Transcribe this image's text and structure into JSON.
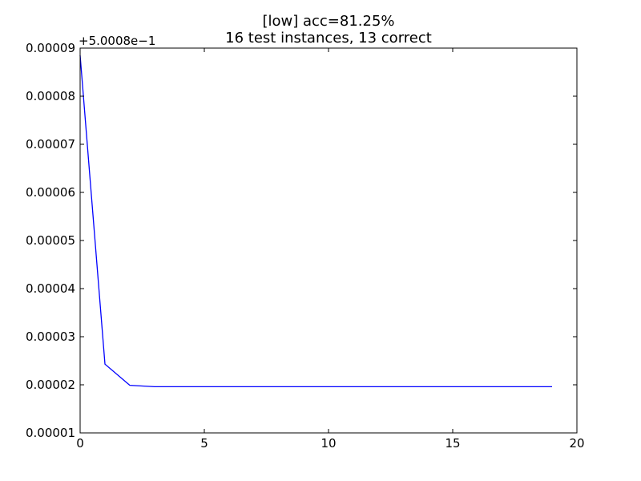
{
  "chart_data": {
    "type": "line",
    "title": [
      "[low] acc=81.25%",
      "16 test instances, 13 correct"
    ],
    "xlabel": "",
    "ylabel": "",
    "xlim": [
      0,
      20
    ],
    "ylim": [
      1e-05,
      9e-05
    ],
    "y_offset_label": "+5.0008e−1",
    "x_ticks": [
      0,
      5,
      10,
      15,
      20
    ],
    "x_tick_labels": [
      "0",
      "5",
      "10",
      "15",
      "20"
    ],
    "y_ticks": [
      1e-05,
      2e-05,
      3e-05,
      4e-05,
      5e-05,
      6e-05,
      7e-05,
      8e-05,
      9e-05
    ],
    "y_tick_labels": [
      "0.00001",
      "0.00002",
      "0.00003",
      "0.00004",
      "0.00005",
      "0.00006",
      "0.00007",
      "0.00008",
      "0.00009"
    ],
    "grid": false,
    "line_color": "#0000ff",
    "series": [
      {
        "x": [
          0,
          1,
          2,
          3,
          4,
          5,
          6,
          7,
          8,
          9,
          10,
          11,
          12,
          13,
          14,
          15,
          16,
          17,
          18,
          19
        ],
        "values": [
          8.85e-05,
          2.43e-05,
          1.99e-05,
          1.96e-05,
          1.96e-05,
          1.96e-05,
          1.96e-05,
          1.96e-05,
          1.96e-05,
          1.96e-05,
          1.96e-05,
          1.96e-05,
          1.96e-05,
          1.96e-05,
          1.96e-05,
          1.96e-05,
          1.96e-05,
          1.96e-05,
          1.96e-05,
          1.96e-05
        ]
      }
    ]
  }
}
